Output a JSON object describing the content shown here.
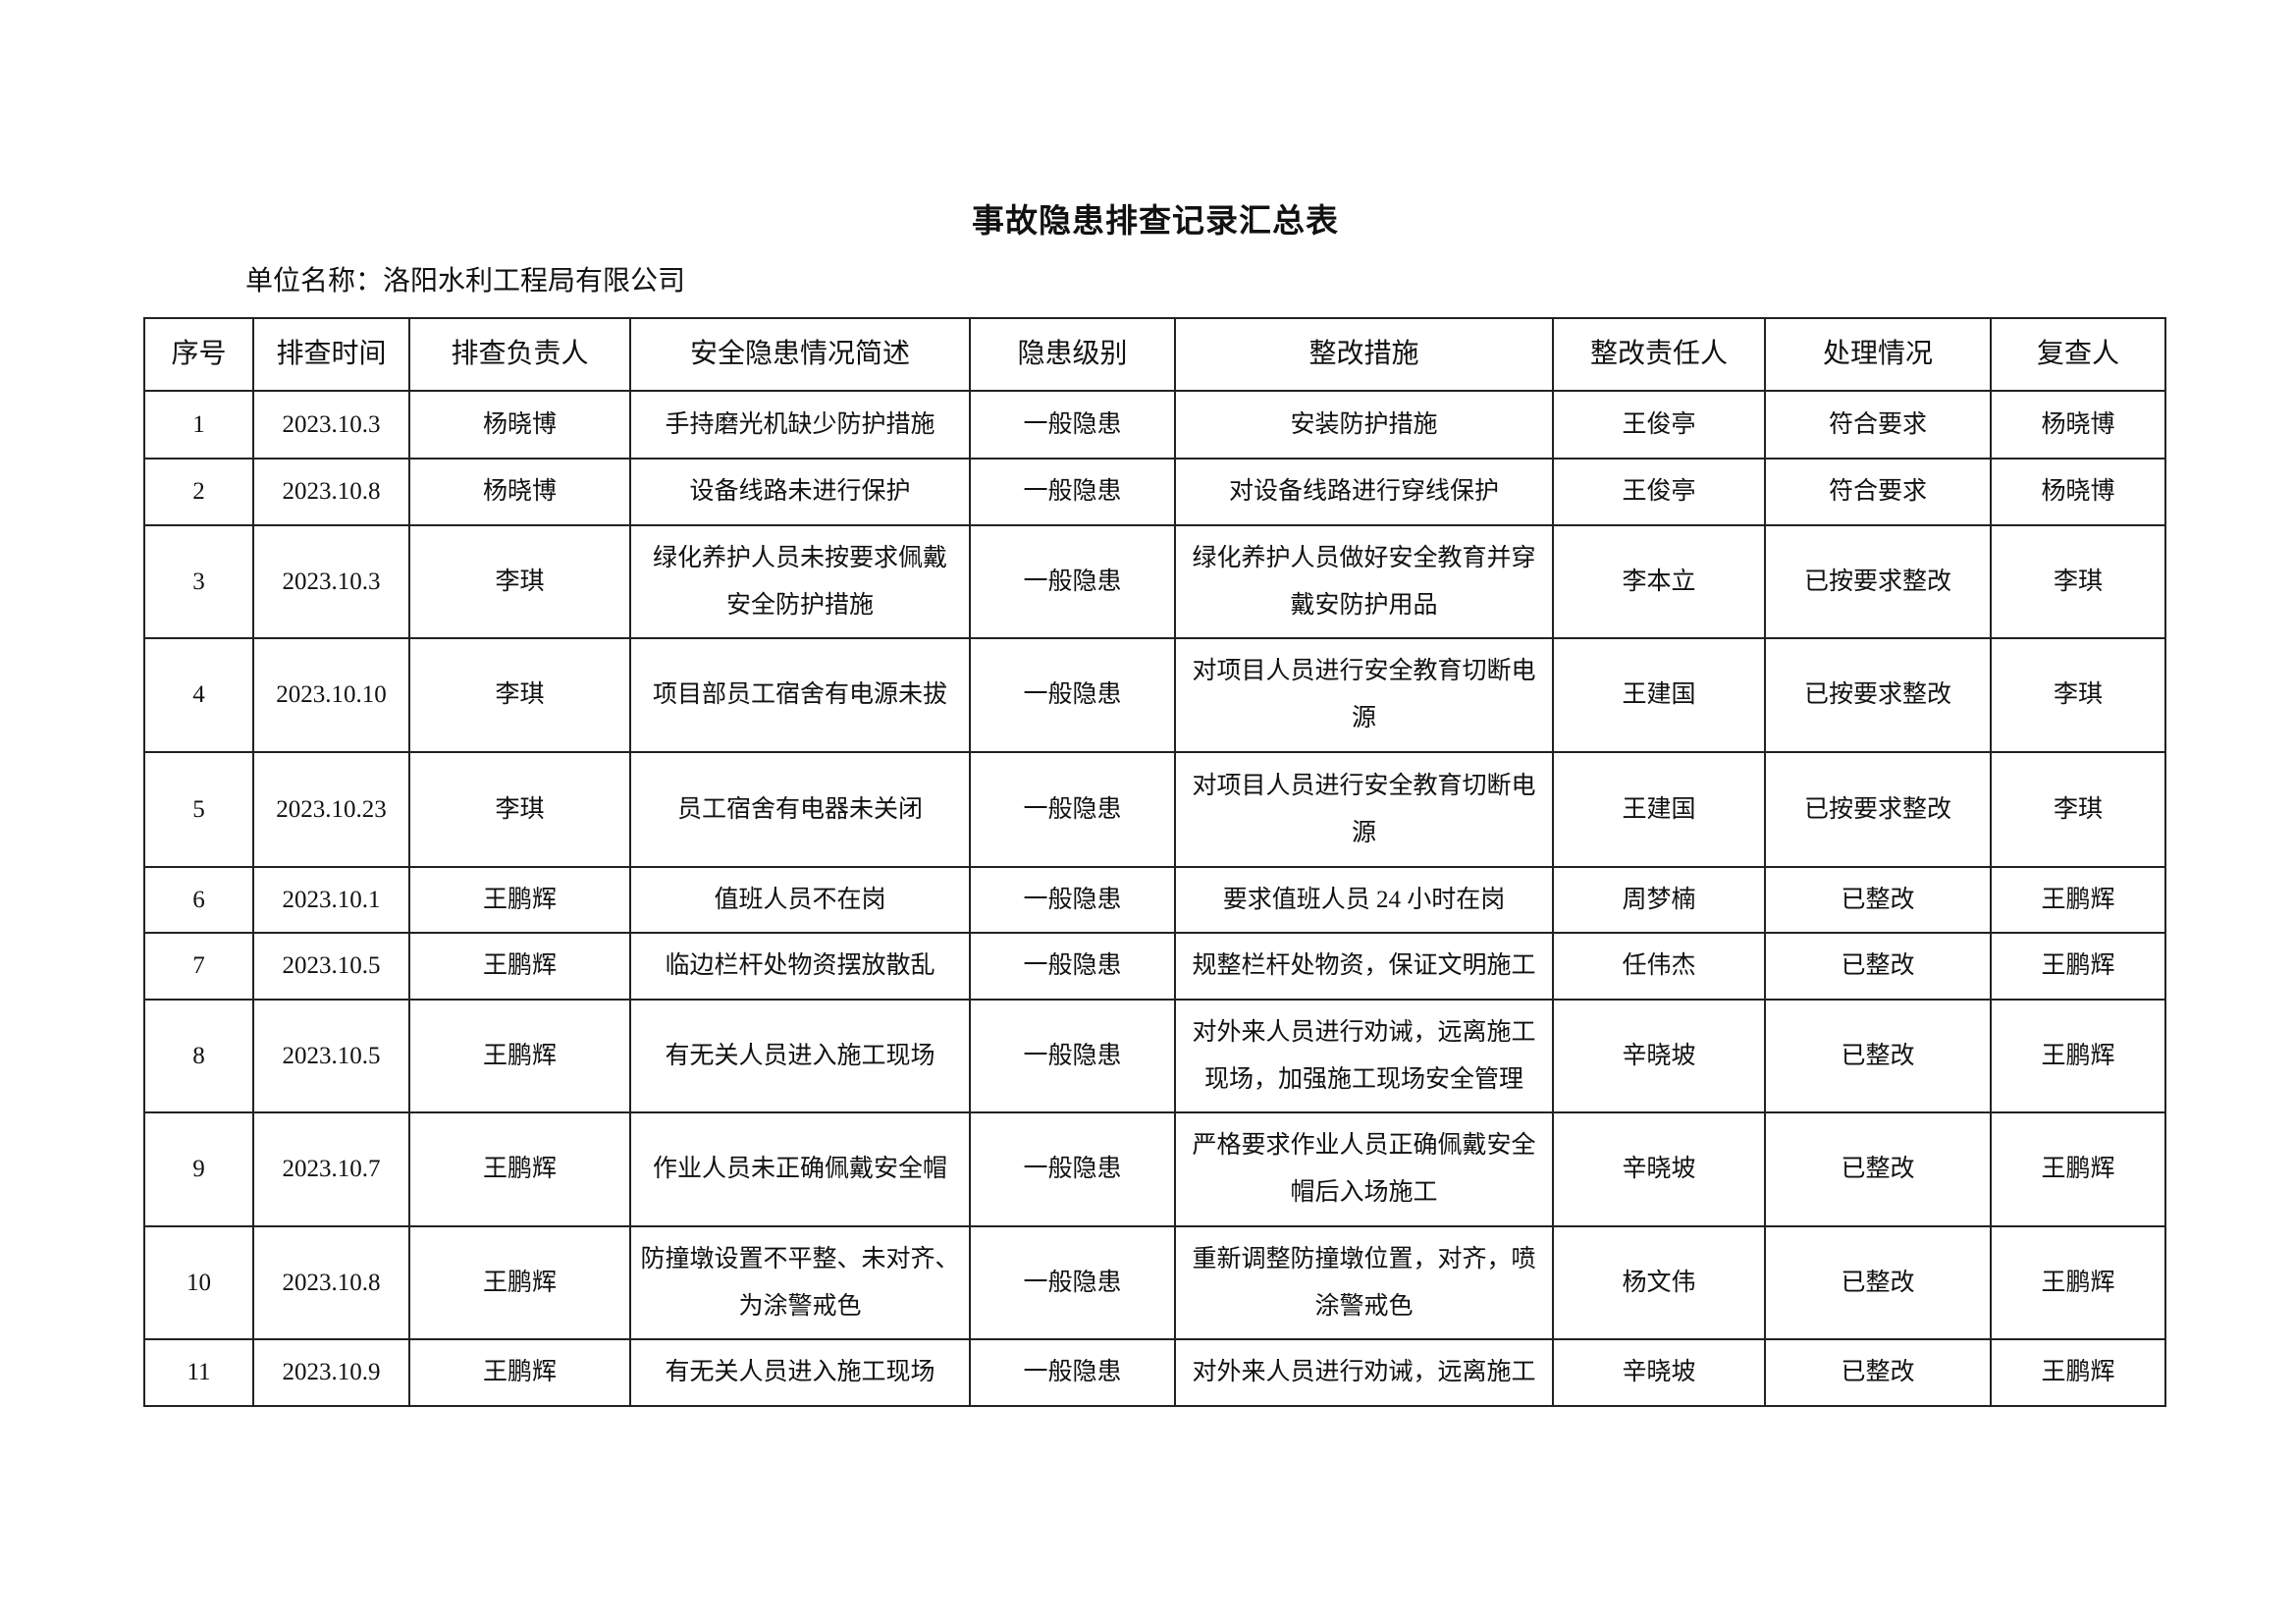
{
  "title": "事故隐患排查记录汇总表",
  "unit_name": "单位名称：洛阳水利工程局有限公司",
  "table": {
    "headers": [
      "序号",
      "排查时间",
      "排查负责人",
      "安全隐患情况简述",
      "隐患级别",
      "整改措施",
      "整改责任人",
      "处理情况",
      "复查人"
    ],
    "rows": [
      [
        "1",
        "2023.10.3",
        "杨晓博",
        "手持磨光机缺少防护措施",
        "一般隐患",
        "安装防护措施",
        "王俊亭",
        "符合要求",
        "杨晓博"
      ],
      [
        "2",
        "2023.10.8",
        "杨晓博",
        "设备线路未进行保护",
        "一般隐患",
        "对设备线路进行穿线保护",
        "王俊亭",
        "符合要求",
        "杨晓博"
      ],
      [
        "3",
        "2023.10.3",
        "李琪",
        "绿化养护人员未按要求佩戴\n安全防护措施",
        "一般隐患",
        "绿化养护人员做好安全教育并穿\n戴安防护用品",
        "李本立",
        "已按要求整改",
        "李琪"
      ],
      [
        "4",
        "2023.10.10",
        "李琪",
        "项目部员工宿舍有电源未拔",
        "一般隐患",
        "对项目人员进行安全教育切断电\n源",
        "王建国",
        "已按要求整改",
        "李琪"
      ],
      [
        "5",
        "2023.10.23",
        "李琪",
        "员工宿舍有电器未关闭",
        "一般隐患",
        "对项目人员进行安全教育切断电\n源",
        "王建国",
        "已按要求整改",
        "李琪"
      ],
      [
        "6",
        "2023.10.1",
        "王鹏辉",
        "值班人员不在岗",
        "一般隐患",
        "要求值班人员 24 小时在岗",
        "周梦楠",
        "已整改",
        "王鹏辉"
      ],
      [
        "7",
        "2023.10.5",
        "王鹏辉",
        "临边栏杆处物资摆放散乱",
        "一般隐患",
        "规整栏杆处物资，保证文明施工",
        "任伟杰",
        "已整改",
        "王鹏辉"
      ],
      [
        "8",
        "2023.10.5",
        "王鹏辉",
        "有无关人员进入施工现场",
        "一般隐患",
        "对外来人员进行劝诫，远离施工\n现场，加强施工现场安全管理",
        "辛晓坡",
        "已整改",
        "王鹏辉"
      ],
      [
        "9",
        "2023.10.7",
        "王鹏辉",
        "作业人员未正确佩戴安全帽",
        "一般隐患",
        "严格要求作业人员正确佩戴安全\n帽后入场施工",
        "辛晓坡",
        "已整改",
        "王鹏辉"
      ],
      [
        "10",
        "2023.10.8",
        "王鹏辉",
        "防撞墩设置不平整、未对齐、\n为涂警戒色",
        "一般隐患",
        "重新调整防撞墩位置，对齐，喷\n涂警戒色",
        "杨文伟",
        "已整改",
        "王鹏辉"
      ],
      [
        "11",
        "2023.10.9",
        "王鹏辉",
        "有无关人员进入施工现场",
        "一般隐患",
        "对外来人员进行劝诫，远离施工",
        "辛晓坡",
        "已整改",
        "王鹏辉"
      ]
    ]
  }
}
